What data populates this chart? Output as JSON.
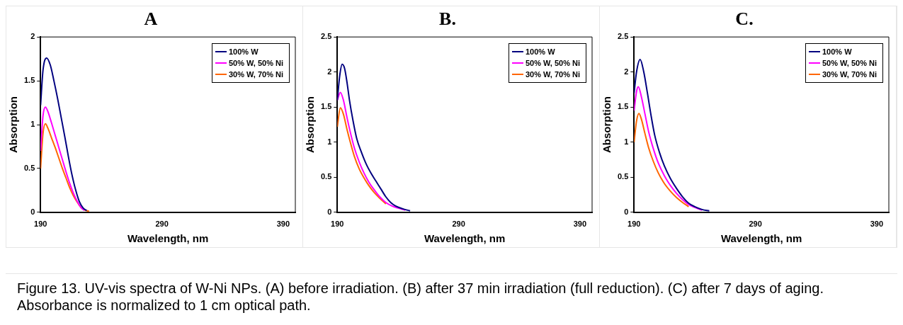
{
  "chart_data": [
    {
      "type": "line",
      "title": "A",
      "xlabel": "Wavelength, nm",
      "ylabel": "Absorption",
      "xlim": [
        190,
        400
      ],
      "xticks": [
        190,
        290,
        390
      ],
      "ylim": [
        0,
        2
      ],
      "yticks": [
        0,
        0.5,
        1,
        1.5,
        2
      ],
      "grid": false,
      "legend": "top right",
      "marker": "none",
      "line_style": "solid",
      "series": [
        {
          "name": "100% W",
          "color": "#000080",
          "x": [
            190,
            192,
            195,
            198,
            201,
            204,
            207,
            210,
            213,
            216,
            219,
            222,
            225,
            228
          ],
          "values": [
            1.22,
            1.62,
            1.76,
            1.68,
            1.5,
            1.3,
            1.08,
            0.86,
            0.63,
            0.42,
            0.25,
            0.12,
            0.05,
            0.02
          ]
        },
        {
          "name": "50% W, 50% Ni",
          "color": "#ff00ff",
          "x": [
            190,
            192,
            194,
            196,
            199,
            202,
            205,
            208,
            211,
            214,
            217,
            220,
            223,
            226
          ],
          "values": [
            0.7,
            1.1,
            1.2,
            1.15,
            1.02,
            0.88,
            0.74,
            0.6,
            0.46,
            0.33,
            0.22,
            0.13,
            0.06,
            0.02
          ]
        },
        {
          "name": "30% W, 70% Ni",
          "color": "#ff6600",
          "x": [
            190,
            192,
            194,
            196,
            199,
            202,
            205,
            208,
            211,
            214,
            217,
            220,
            223,
            226,
            230
          ],
          "values": [
            0.5,
            0.9,
            1.01,
            0.96,
            0.85,
            0.74,
            0.62,
            0.5,
            0.39,
            0.28,
            0.19,
            0.12,
            0.06,
            0.03,
            0.01
          ]
        }
      ]
    },
    {
      "type": "line",
      "title": "B.",
      "xlabel": "Wavelength, nm",
      "ylabel": "Absorption",
      "xlim": [
        190,
        400
      ],
      "xticks": [
        190,
        290,
        390
      ],
      "ylim": [
        0,
        2.5
      ],
      "yticks": [
        0,
        0.5,
        1,
        1.5,
        2,
        2.5
      ],
      "grid": false,
      "legend": "top right",
      "marker": "none",
      "line_style": "solid",
      "series": [
        {
          "name": "100% W",
          "color": "#000080",
          "x": [
            190,
            192,
            194,
            196,
            198,
            200,
            203,
            206,
            210,
            214,
            218,
            222,
            226,
            230,
            234,
            238,
            244,
            250
          ],
          "values": [
            1.6,
            1.95,
            2.11,
            2.05,
            1.85,
            1.6,
            1.3,
            1.05,
            0.85,
            0.68,
            0.55,
            0.44,
            0.33,
            0.22,
            0.14,
            0.09,
            0.05,
            0.02
          ]
        },
        {
          "name": "50% W, 50% Ni",
          "color": "#ff00ff",
          "x": [
            190,
            192.5,
            195,
            198,
            201,
            204,
            208,
            212,
            216,
            220,
            225,
            230,
            235,
            240,
            246
          ],
          "values": [
            1.6,
            1.71,
            1.6,
            1.35,
            1.12,
            0.92,
            0.72,
            0.56,
            0.43,
            0.33,
            0.22,
            0.14,
            0.09,
            0.06,
            0.03
          ]
        },
        {
          "name": "30% W, 70% Ni",
          "color": "#ff6600",
          "x": [
            190,
            192.5,
            195,
            198,
            201,
            204,
            208,
            212,
            216,
            220,
            225,
            230
          ],
          "values": [
            1.22,
            1.49,
            1.4,
            1.18,
            0.98,
            0.8,
            0.62,
            0.49,
            0.38,
            0.29,
            0.2,
            0.12
          ]
        }
      ]
    },
    {
      "type": "line",
      "title": "C.",
      "xlabel": "Wavelength, nm",
      "ylabel": "Absorption",
      "xlim": [
        190,
        400
      ],
      "xticks": [
        190,
        290,
        390
      ],
      "ylim": [
        0,
        2.5
      ],
      "yticks": [
        0,
        0.5,
        1,
        1.5,
        2,
        2.5
      ],
      "grid": false,
      "legend": "top right",
      "marker": "none",
      "line_style": "solid",
      "annotations": [
        "Figure 13. UV-vis spectra of W-Ni NPs. (A) before irradiation. (B) after 37 min irradiation (full reduction). (C) after 7 days of aging. Absorbance is normalized to 1 cm optical path."
      ],
      "series": [
        {
          "name": "100% W",
          "color": "#000080",
          "x": [
            190,
            192,
            195,
            198,
            201,
            204,
            207,
            211,
            215,
            220,
            225,
            230,
            235,
            240,
            246,
            252
          ],
          "values": [
            1.7,
            2.0,
            2.18,
            2.0,
            1.7,
            1.38,
            1.1,
            0.85,
            0.66,
            0.48,
            0.34,
            0.22,
            0.13,
            0.08,
            0.04,
            0.02
          ]
        },
        {
          "name": "50% W, 50% Ni",
          "color": "#ff00ff",
          "x": [
            190,
            192,
            193.5,
            196,
            199,
            202,
            206,
            210,
            215,
            220,
            225,
            230,
            235,
            240,
            246
          ],
          "values": [
            1.45,
            1.72,
            1.79,
            1.65,
            1.4,
            1.15,
            0.9,
            0.7,
            0.52,
            0.38,
            0.27,
            0.18,
            0.11,
            0.07,
            0.03
          ]
        },
        {
          "name": "30% W, 70% Ni",
          "color": "#ff6600",
          "x": [
            190,
            192,
            194,
            196,
            199,
            202,
            206,
            210,
            215,
            220,
            225,
            230,
            235
          ],
          "values": [
            1.0,
            1.3,
            1.41,
            1.33,
            1.12,
            0.92,
            0.72,
            0.56,
            0.41,
            0.3,
            0.21,
            0.14,
            0.08
          ]
        }
      ]
    }
  ]
}
